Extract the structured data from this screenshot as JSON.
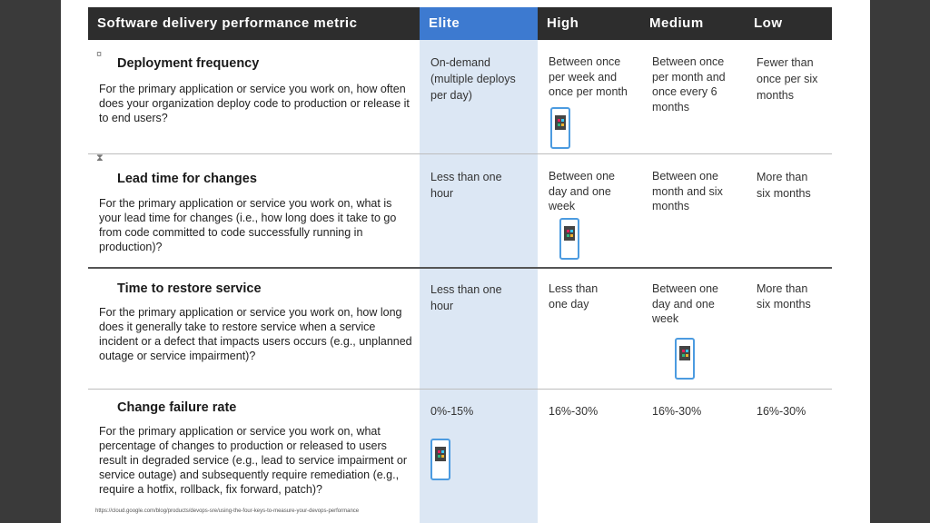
{
  "header": {
    "metric": "Software delivery performance metric",
    "elite": "Elite",
    "high": "High",
    "medium": "Medium",
    "low": "Low"
  },
  "rows": [
    {
      "title": "Deployment frequency",
      "description": "For the primary application or service you work on, how often does your organization deploy code to production or release it to end users?",
      "elite": "On-demand (multiple deploys per day)",
      "high": "Between once per week and once per month",
      "medium": "Between once per month and once every 6 months",
      "low": "Fewer than once per six months"
    },
    {
      "title": "Lead time for changes",
      "description": "For the primary application or service you work on, what is your lead time for changes (i.e., how long does it take to go from code committed to code successfully running in production)?",
      "elite": "Less than one hour",
      "high": "Between one day and one week",
      "medium": "Between one month and six months",
      "low": "More than six months"
    },
    {
      "title": "Time to restore service",
      "description": "For the primary application or service you work on, how long does it generally take to restore service when a service incident or a defect that impacts users occurs (e.g., unplanned outage or service impairment)?",
      "elite": "Less than one hour",
      "high": "Less than one day",
      "medium": "Between one day and one week",
      "low": "More than six months"
    },
    {
      "title": "Change failure rate",
      "description": "For the primary application or service you work on, what percentage of changes to production or released to users result in degraded service (e.g., lead to service impairment or service outage) and subsequently require remediation (e.g., require a hotfix, rollback, fix forward, patch)?",
      "elite": "0%-15%",
      "high": "16%-30%",
      "medium": "16%-30%",
      "low": "16%-30%"
    }
  ],
  "footer_url": "https://cloud.google.com/blog/products/devops-sre/using-the-four-keys-to-measure-your-devops-performance",
  "colors": {
    "header_bg": "#2d2d2d",
    "elite_header": "#3d7ad0",
    "elite_column": "#dce7f4",
    "phone_border": "#4c9be0"
  }
}
